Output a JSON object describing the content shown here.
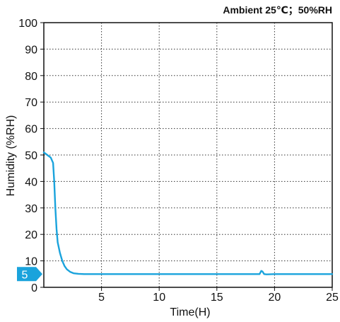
{
  "chart_data": {
    "type": "line",
    "title": "Ambient 25℃；50%RH",
    "xlabel": "Time(H)",
    "ylabel": "Humidity (%RH)",
    "xlim": [
      0,
      25
    ],
    "ylim": [
      0,
      100
    ],
    "x_ticks": [
      5,
      10,
      15,
      20,
      25
    ],
    "y_ticks": [
      0,
      10,
      20,
      30,
      40,
      50,
      60,
      70,
      80,
      90,
      100
    ],
    "grid": true,
    "grid_style": "dotted",
    "marker": {
      "label": "5",
      "value": 5,
      "color": "#1aa3dc"
    },
    "series": [
      {
        "color": "#1aa3dc",
        "x": [
          0,
          0.3,
          0.6,
          0.8,
          0.9,
          1.0,
          1.1,
          1.2,
          1.4,
          1.6,
          1.8,
          2.0,
          2.3,
          2.6,
          3.0,
          3.5,
          4.0,
          5,
          10,
          15,
          18.7,
          18.85,
          18.95,
          19.1,
          19.3,
          20,
          25
        ],
        "y": [
          51,
          50,
          49,
          47,
          40,
          30,
          22,
          17,
          13,
          10,
          8,
          6.8,
          5.8,
          5.3,
          5.1,
          5.0,
          5.0,
          5.0,
          5.0,
          5.0,
          5.0,
          6.2,
          6.0,
          5.0,
          4.9,
          5.0,
          5.0
        ]
      }
    ]
  }
}
